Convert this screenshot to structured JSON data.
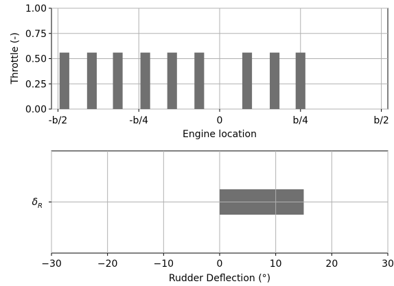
{
  "chart_data": [
    {
      "type": "bar",
      "xlabel": "Engine location",
      "ylabel": "Throttle (-)",
      "x_ticks": [
        {
          "value": -0.5,
          "label": "-b/2"
        },
        {
          "value": -0.25,
          "label": "-b/4"
        },
        {
          "value": 0,
          "label": "0"
        },
        {
          "value": 0.25,
          "label": "b/4"
        },
        {
          "value": 0.5,
          "label": "b/2"
        }
      ],
      "y_ticks": [
        "0.00",
        "0.25",
        "0.50",
        "0.75",
        "1.00"
      ],
      "xlim": [
        -0.52,
        0.52
      ],
      "ylim": [
        0,
        1
      ],
      "bar_width": 0.03,
      "x": [
        -0.48,
        -0.395,
        -0.315,
        -0.23,
        -0.147,
        -0.063,
        0.085,
        0.17,
        0.25
      ],
      "values": [
        0.56,
        0.56,
        0.56,
        0.56,
        0.56,
        0.56,
        0.56,
        0.56,
        0.56
      ],
      "color": "#707070",
      "grid": true
    },
    {
      "type": "bar",
      "orientation": "horizontal",
      "xlabel": "Rudder Deflection (°)",
      "ylabel": "",
      "category_label": {
        "base": "δ",
        "sub": "R"
      },
      "x_ticks": [
        "−30",
        "−20",
        "−10",
        "0",
        "10",
        "20",
        "30"
      ],
      "xlim": [
        -30,
        30
      ],
      "values": [
        15
      ],
      "color": "#707070",
      "grid": true
    }
  ]
}
